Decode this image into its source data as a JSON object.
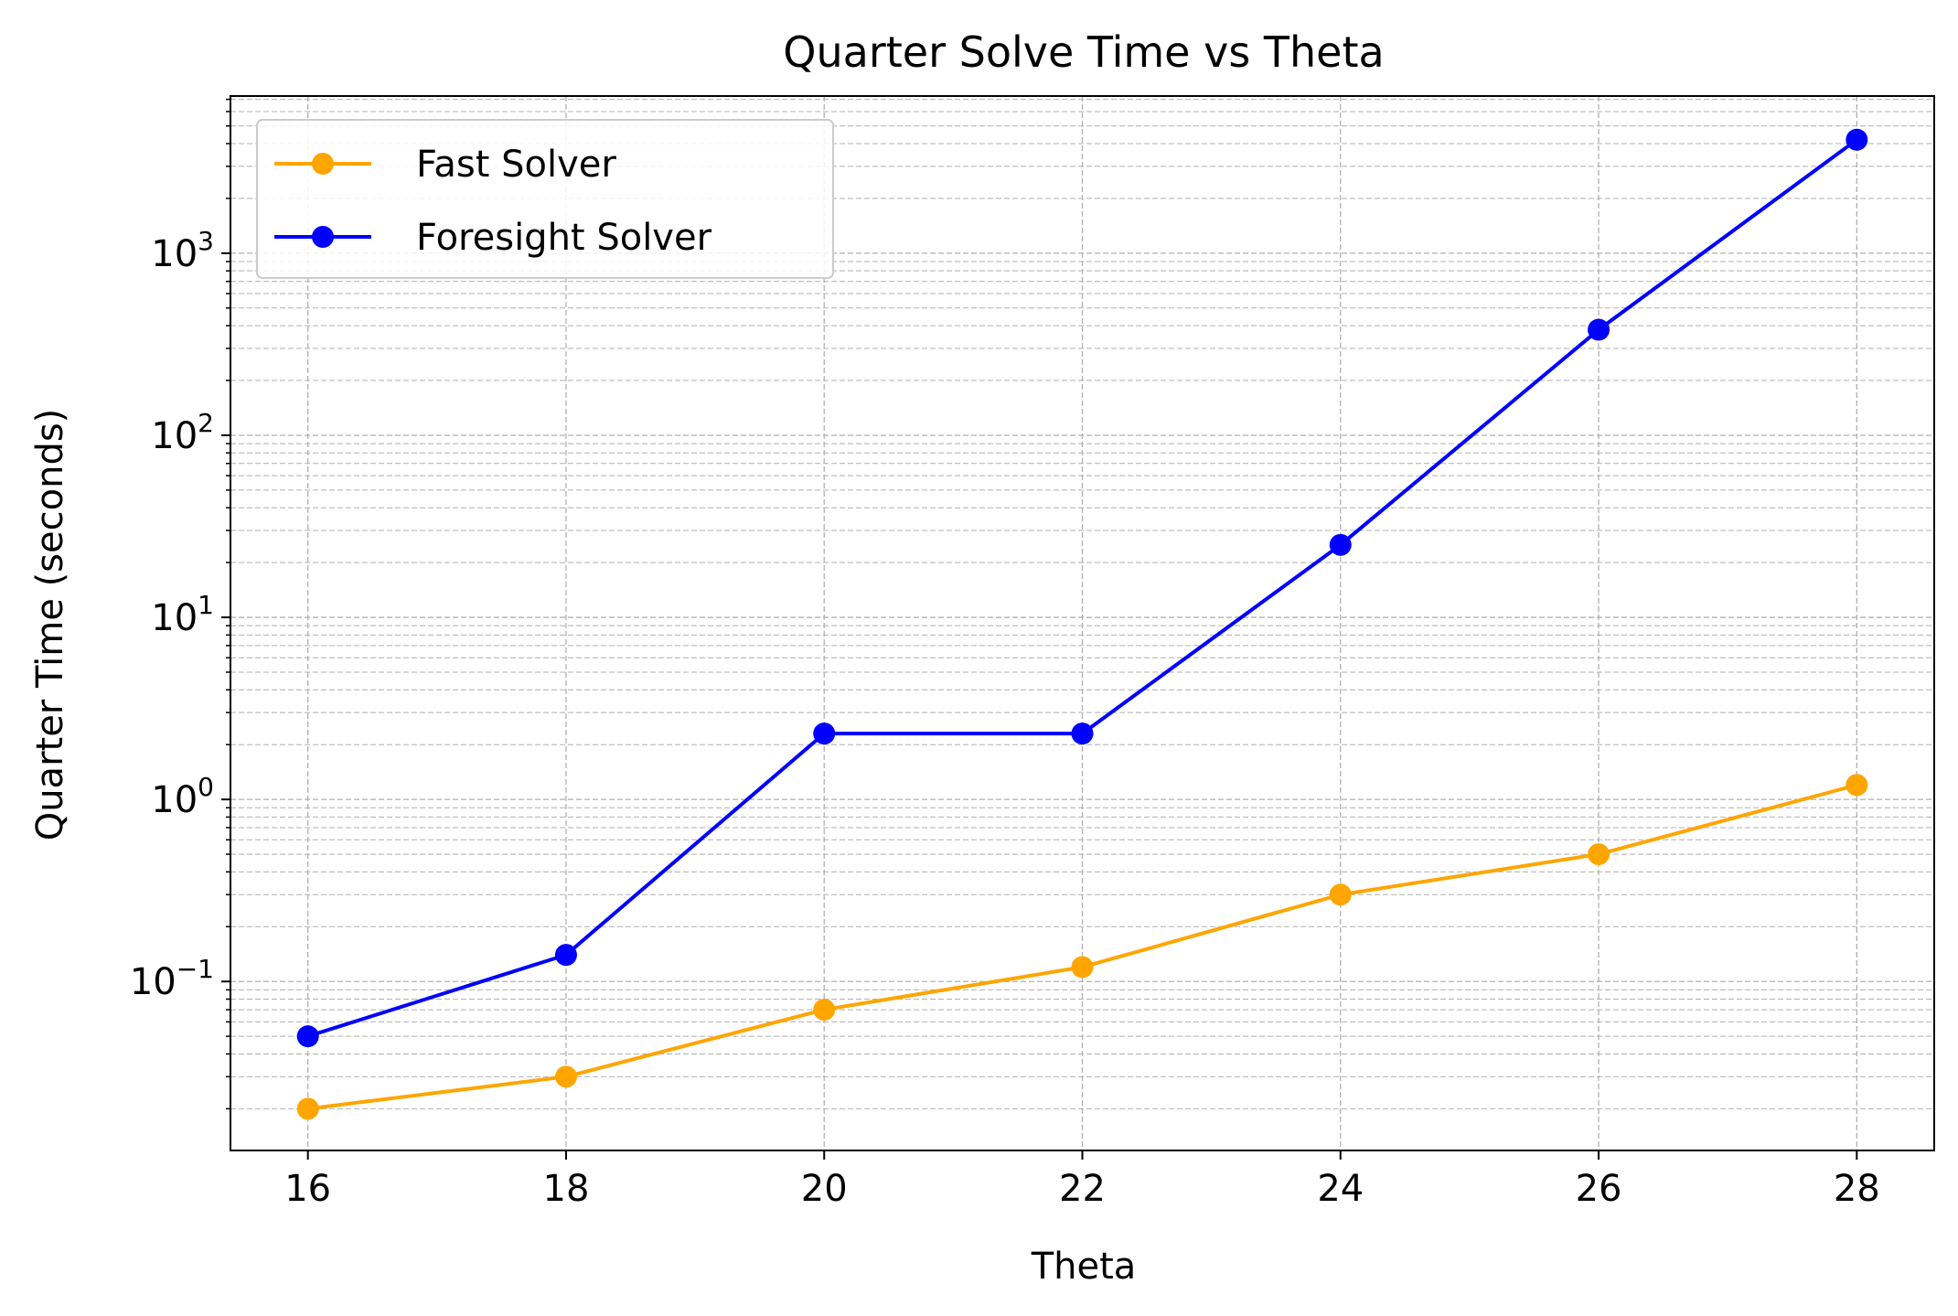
{
  "chart_data": {
    "type": "line",
    "title": "Quarter Solve Time vs Theta",
    "xlabel": "Theta",
    "ylabel": "Quarter Time (seconds)",
    "x": [
      16,
      18,
      20,
      22,
      24,
      26,
      28
    ],
    "xlim": [
      15.4,
      28.6
    ],
    "xticks": [
      16,
      18,
      20,
      22,
      24,
      26,
      28
    ],
    "yscale": "log",
    "ylim": [
      0.0118,
      7300
    ],
    "yticks": [
      {
        "value": 0.1,
        "base": "10",
        "exp": "−1"
      },
      {
        "value": 1,
        "base": "10",
        "exp": "0"
      },
      {
        "value": 10,
        "base": "10",
        "exp": "1"
      },
      {
        "value": 100,
        "base": "10",
        "exp": "2"
      },
      {
        "value": 1000,
        "base": "10",
        "exp": "3"
      }
    ],
    "grid": true,
    "legend_position": "top-left",
    "series": [
      {
        "name": "Fast Solver",
        "color": "#FFA500",
        "values": [
          0.02,
          0.03,
          0.07,
          0.12,
          0.3,
          0.5,
          1.2
        ]
      },
      {
        "name": "Foresight Solver",
        "color": "#0000FF",
        "values": [
          0.05,
          0.14,
          2.3,
          2.3,
          25,
          380,
          4200
        ]
      }
    ]
  }
}
